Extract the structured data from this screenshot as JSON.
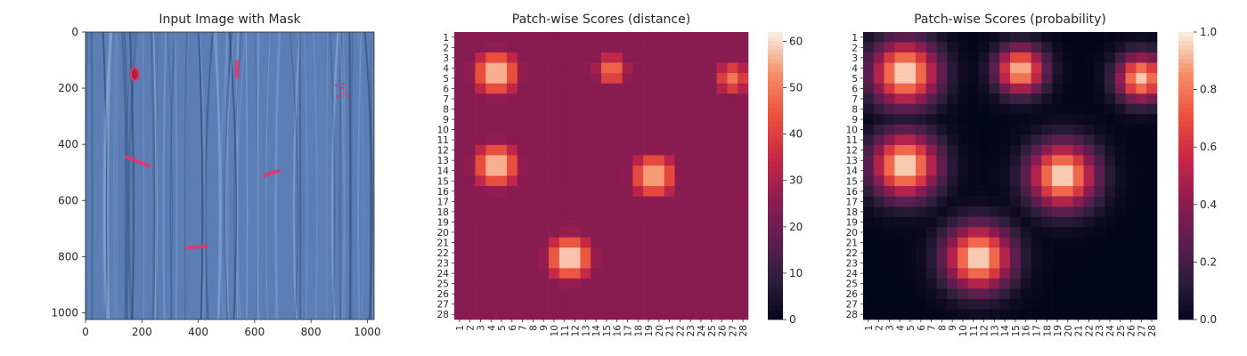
{
  "chart_data": [
    {
      "type": "image",
      "title": "Input Image with Mask",
      "xticks": [
        0,
        200,
        400,
        600,
        800,
        1000
      ],
      "yticks": [
        0,
        200,
        400,
        600,
        800,
        1000
      ],
      "xlim": [
        0,
        1024
      ],
      "ylim": [
        1024,
        0
      ],
      "background_color": "#5b7fb4",
      "mask_color": "#e8336e",
      "defects": [
        {
          "shape": "blob",
          "cx": 175,
          "cy": 150,
          "rx": 14,
          "ry": 22
        },
        {
          "shape": "stroke",
          "points": [
            [
              540,
              105
            ],
            [
              535,
              130
            ],
            [
              540,
              160
            ]
          ]
        },
        {
          "shape": "stroke",
          "points": [
            [
              145,
              445
            ],
            [
              190,
              462
            ],
            [
              225,
              478
            ]
          ]
        },
        {
          "shape": "stroke",
          "points": [
            [
              635,
              512
            ],
            [
              660,
              502
            ],
            [
              685,
              495
            ]
          ]
        },
        {
          "shape": "stroke",
          "points": [
            [
              360,
              770
            ],
            [
              395,
              765
            ],
            [
              430,
              763
            ]
          ]
        },
        {
          "shape": "dots",
          "points": [
            [
              890,
              190
            ],
            [
              910,
              200
            ],
            [
              905,
              215
            ],
            [
              925,
              220
            ],
            [
              895,
              230
            ],
            [
              930,
              235
            ],
            [
              915,
              185
            ]
          ]
        }
      ]
    },
    {
      "type": "heatmap",
      "title": "Patch-wise Scores (distance)",
      "labels": [
        "1",
        "2",
        "3",
        "4",
        "5",
        "6",
        "7",
        "8",
        "9",
        "10",
        "11",
        "12",
        "13",
        "14",
        "15",
        "16",
        "17",
        "18",
        "19",
        "20",
        "21",
        "22",
        "23",
        "24",
        "25",
        "26",
        "27",
        "28"
      ],
      "vmin": 0,
      "vmax": 62,
      "colorbar_ticks": [
        0,
        10,
        20,
        30,
        40,
        50,
        60
      ],
      "baseline": 25,
      "hotspots": [
        {
          "row": 4.5,
          "col": 4.5,
          "peak": 60,
          "spread": 2.0
        },
        {
          "row": 4.2,
          "col": 15.5,
          "peak": 50,
          "spread": 1.5
        },
        {
          "row": 5.0,
          "col": 27.0,
          "peak": 50,
          "spread": 1.5
        },
        {
          "row": 13.5,
          "col": 4.5,
          "peak": 60,
          "spread": 2.0
        },
        {
          "row": 14.5,
          "col": 19.5,
          "peak": 58,
          "spread": 2.0
        },
        {
          "row": 22.5,
          "col": 11.5,
          "peak": 62,
          "spread": 2.0
        }
      ]
    },
    {
      "type": "heatmap",
      "title": "Patch-wise Scores (probability)",
      "labels": [
        "1",
        "2",
        "3",
        "4",
        "5",
        "6",
        "7",
        "8",
        "9",
        "10",
        "11",
        "12",
        "13",
        "14",
        "15",
        "16",
        "17",
        "18",
        "19",
        "20",
        "21",
        "22",
        "23",
        "24",
        "25",
        "26",
        "27",
        "28"
      ],
      "vmin": 0.0,
      "vmax": 1.0,
      "colorbar_ticks": [
        "0.0",
        "0.2",
        "0.4",
        "0.6",
        "0.8",
        "1.0"
      ],
      "baseline": 0.0,
      "hotspots": [
        {
          "row": 4.5,
          "col": 4.5,
          "peak": 1.0,
          "spread": 2.2
        },
        {
          "row": 4.2,
          "col": 15.5,
          "peak": 0.95,
          "spread": 1.6
        },
        {
          "row": 5.0,
          "col": 27.0,
          "peak": 0.95,
          "spread": 1.6
        },
        {
          "row": 13.5,
          "col": 4.5,
          "peak": 1.0,
          "spread": 2.2
        },
        {
          "row": 14.5,
          "col": 19.5,
          "peak": 1.0,
          "spread": 2.2
        },
        {
          "row": 22.5,
          "col": 11.5,
          "peak": 1.0,
          "spread": 2.2
        }
      ]
    }
  ]
}
